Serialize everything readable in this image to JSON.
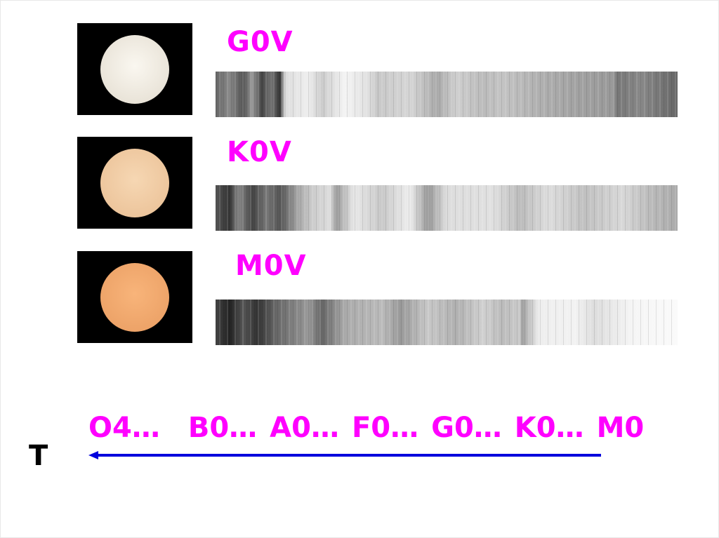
{
  "stars": [
    {
      "label": "G0V",
      "color": "#f3efe6"
    },
    {
      "label": "K0V",
      "color": "#efc9a0"
    },
    {
      "label": "M0V",
      "color": "#f2a86a"
    }
  ],
  "sequence": [
    "O4…",
    "B0…",
    "A0…",
    "F0…",
    "G0…",
    "K0…",
    "M0"
  ],
  "axis_label": "T",
  "colors": {
    "label": "#ff00ff",
    "arrow": "#0000dd"
  }
}
